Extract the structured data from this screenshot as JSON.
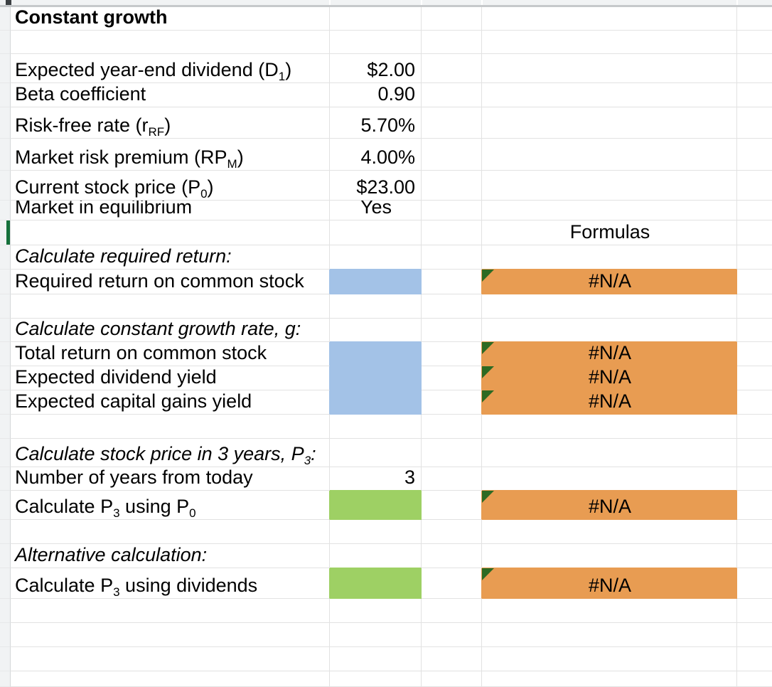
{
  "colors": {
    "blue_fill": "#a3c2e7",
    "green_fill": "#9ed064",
    "orange_fill": "#e89c52",
    "triangle_green": "#2d6a23",
    "row_marker_green": "#15703b"
  },
  "rows": {
    "title": {
      "label": "Constant growth"
    },
    "dividend": {
      "label": "Expected year-end dividend (D<sub>1</sub>)",
      "value": "$2.00"
    },
    "beta": {
      "label": "Beta coefficient",
      "value": "0.90"
    },
    "risk_free": {
      "label": "Risk-free rate (r<sub>RF</sub>)",
      "value": "5.70%"
    },
    "market_premium": {
      "label": "Market risk premium (RP<sub>M</sub>)",
      "value": "4.00%"
    },
    "price": {
      "label": "Current stock price (P<sub>0</sub>)",
      "value": "$23.00"
    },
    "equilibrium": {
      "label": "Market in equilibrium",
      "value": "Yes"
    },
    "formulas_header": {
      "label": "Formulas"
    },
    "calc_required": {
      "label": "Calculate required return:"
    },
    "required_return": {
      "label": "Required return on common stock",
      "formula": "#N/A"
    },
    "calc_growth": {
      "label": "Calculate constant growth rate, g:"
    },
    "total_return": {
      "label": "Total return on common stock",
      "formula": "#N/A"
    },
    "dividend_yield": {
      "label": "Expected dividend yield",
      "formula": "#N/A"
    },
    "capital_gains_yield": {
      "label": "Expected capital gains yield",
      "formula": "#N/A"
    },
    "calc_p3": {
      "label": "Calculate stock price in 3 years, P<sub>3</sub>:"
    },
    "years": {
      "label": "Number of years from today",
      "value": "3"
    },
    "p3_from_p0": {
      "label": "Calculate P<sub>3</sub> using P<sub>0</sub>",
      "formula": "#N/A"
    },
    "alt_calc": {
      "label": "Alternative calculation:"
    },
    "p3_from_dividends": {
      "label": "Calculate P<sub>3</sub> using dividends",
      "formula": "#N/A"
    }
  }
}
